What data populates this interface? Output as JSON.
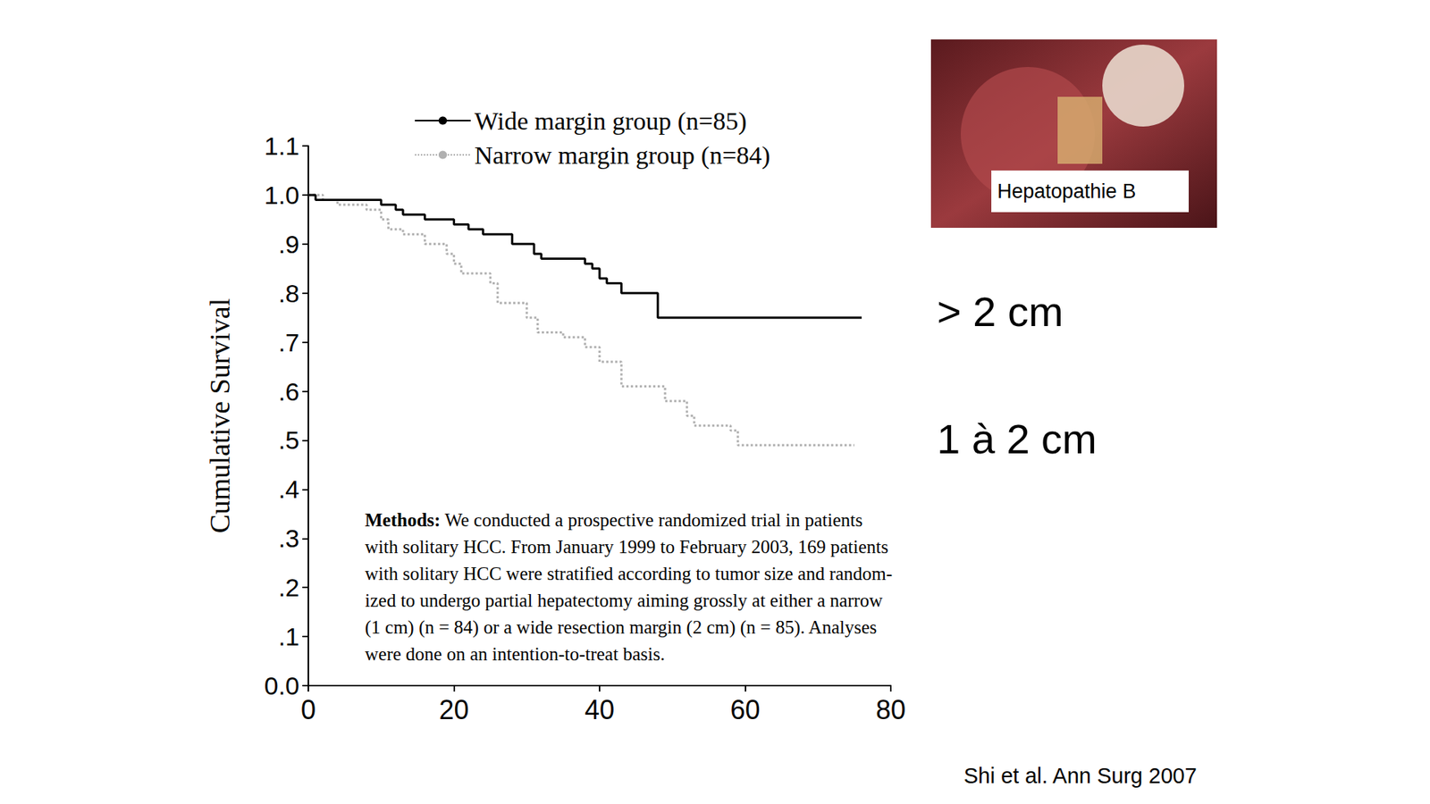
{
  "chart_data": {
    "type": "step",
    "y_label": "Cumulative Survival",
    "xlim": [
      0,
      80
    ],
    "xticks": [
      0,
      20,
      40,
      60,
      80
    ],
    "ylim": [
      0,
      1.1
    ],
    "yticks": [
      {
        "value": 0,
        "label": "0.0"
      },
      {
        "value": 0.1,
        "label": ".1"
      },
      {
        "value": 0.2,
        "label": ".2"
      },
      {
        "value": 0.3,
        "label": ".3"
      },
      {
        "value": 0.4,
        "label": ".4"
      },
      {
        "value": 0.5,
        "label": ".5"
      },
      {
        "value": 0.6,
        "label": ".6"
      },
      {
        "value": 0.7,
        "label": ".7"
      },
      {
        "value": 0.8,
        "label": ".8"
      },
      {
        "value": 0.9,
        "label": ".9"
      },
      {
        "value": 1.0,
        "label": "1.0"
      },
      {
        "value": 1.1,
        "label": "1.1"
      }
    ],
    "grid": false,
    "legend": "top",
    "series": [
      {
        "name": "Wide margin group (n=85)",
        "color": "#000000",
        "line_style": "solid",
        "x": [
          0,
          1,
          10,
          12,
          13,
          16,
          20,
          22,
          24,
          28,
          31,
          32,
          38,
          39,
          40,
          41,
          43,
          48,
          76
        ],
        "values": [
          1.0,
          0.99,
          0.98,
          0.97,
          0.96,
          0.95,
          0.94,
          0.93,
          0.92,
          0.9,
          0.88,
          0.87,
          0.86,
          0.85,
          0.83,
          0.82,
          0.8,
          0.75,
          0.75
        ]
      },
      {
        "name": "Narrow margin group (n=84)",
        "color": "#b0b0b0",
        "line_style": "dotted",
        "x": [
          0,
          2,
          4,
          8,
          10,
          11,
          13,
          16,
          19,
          20,
          21,
          25,
          26,
          30,
          31.5,
          35,
          38,
          40,
          43,
          49,
          52,
          53,
          58,
          59,
          75
        ],
        "values": [
          1.0,
          0.99,
          0.98,
          0.97,
          0.95,
          0.93,
          0.92,
          0.9,
          0.88,
          0.86,
          0.84,
          0.82,
          0.78,
          0.75,
          0.72,
          0.71,
          0.69,
          0.66,
          0.61,
          0.58,
          0.55,
          0.53,
          0.52,
          0.49,
          0.49
        ]
      }
    ],
    "annotations": [
      "> 2 cm",
      "1 à 2 cm"
    ],
    "methods": {
      "heading": "Methods:",
      "lines": [
        "We conducted a prospective randomized trial in patients",
        "with solitary HCC. From January 1999 to February 2003, 169 patients",
        "with solitary HCC were stratified according to tumor size and random-",
        "ized to undergo partial hepatectomy aiming grossly at either a narrow",
        "(1 cm) (n = 84) or a wide resection margin (2 cm) (n = 85). Analyses",
        "were done on an intention-to-treat basis."
      ]
    },
    "image_label": "Hepatopathie B",
    "source": "Shi et al. Ann Surg 2007"
  }
}
